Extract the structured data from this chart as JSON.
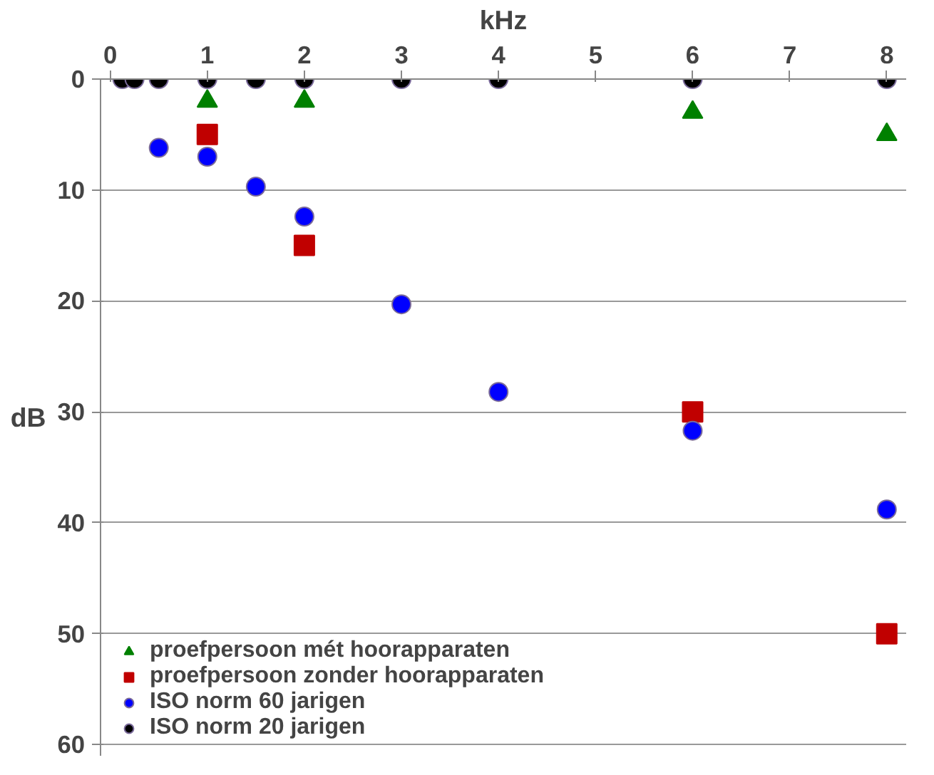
{
  "chart_data": {
    "type": "scatter",
    "xlabel": "kHz",
    "ylabel": "dB",
    "xlim": [
      -0.1,
      8.2
    ],
    "ylim": [
      61,
      0
    ],
    "xticks": [
      0,
      1,
      2,
      3,
      4,
      5,
      6,
      7,
      8
    ],
    "yticks": [
      0,
      10,
      20,
      30,
      40,
      50,
      60
    ],
    "grid": "y",
    "legend": "bottom left",
    "series": [
      {
        "name": "proefpersoon mét hoorapparaten",
        "color": "#008000",
        "marker": "triangle",
        "x": [
          1,
          2,
          6,
          8
        ],
        "values": [
          2,
          2,
          3,
          5
        ]
      },
      {
        "name": "proefpersoon zonder hoorapparaten",
        "color": "#c00000",
        "marker": "square",
        "x": [
          1,
          2,
          6,
          8
        ],
        "values": [
          5,
          15,
          30,
          50
        ]
      },
      {
        "name": "ISO norm 60 jarigen",
        "color": "#0000ff",
        "marker": "circle",
        "x": [
          0.5,
          1,
          1.5,
          2,
          3,
          4,
          6,
          8
        ],
        "values": [
          6.2,
          7,
          9.7,
          12.4,
          20.3,
          28.2,
          31.7,
          38.8
        ]
      },
      {
        "name": "ISO norm 20 jarigen",
        "color": "#000000",
        "marker": "circle",
        "x": [
          0.125,
          0.25,
          0.5,
          1,
          1.5,
          2,
          3,
          4,
          6,
          8
        ],
        "values": [
          0,
          0,
          0,
          0,
          0,
          0,
          0,
          0,
          0,
          0
        ]
      }
    ]
  }
}
